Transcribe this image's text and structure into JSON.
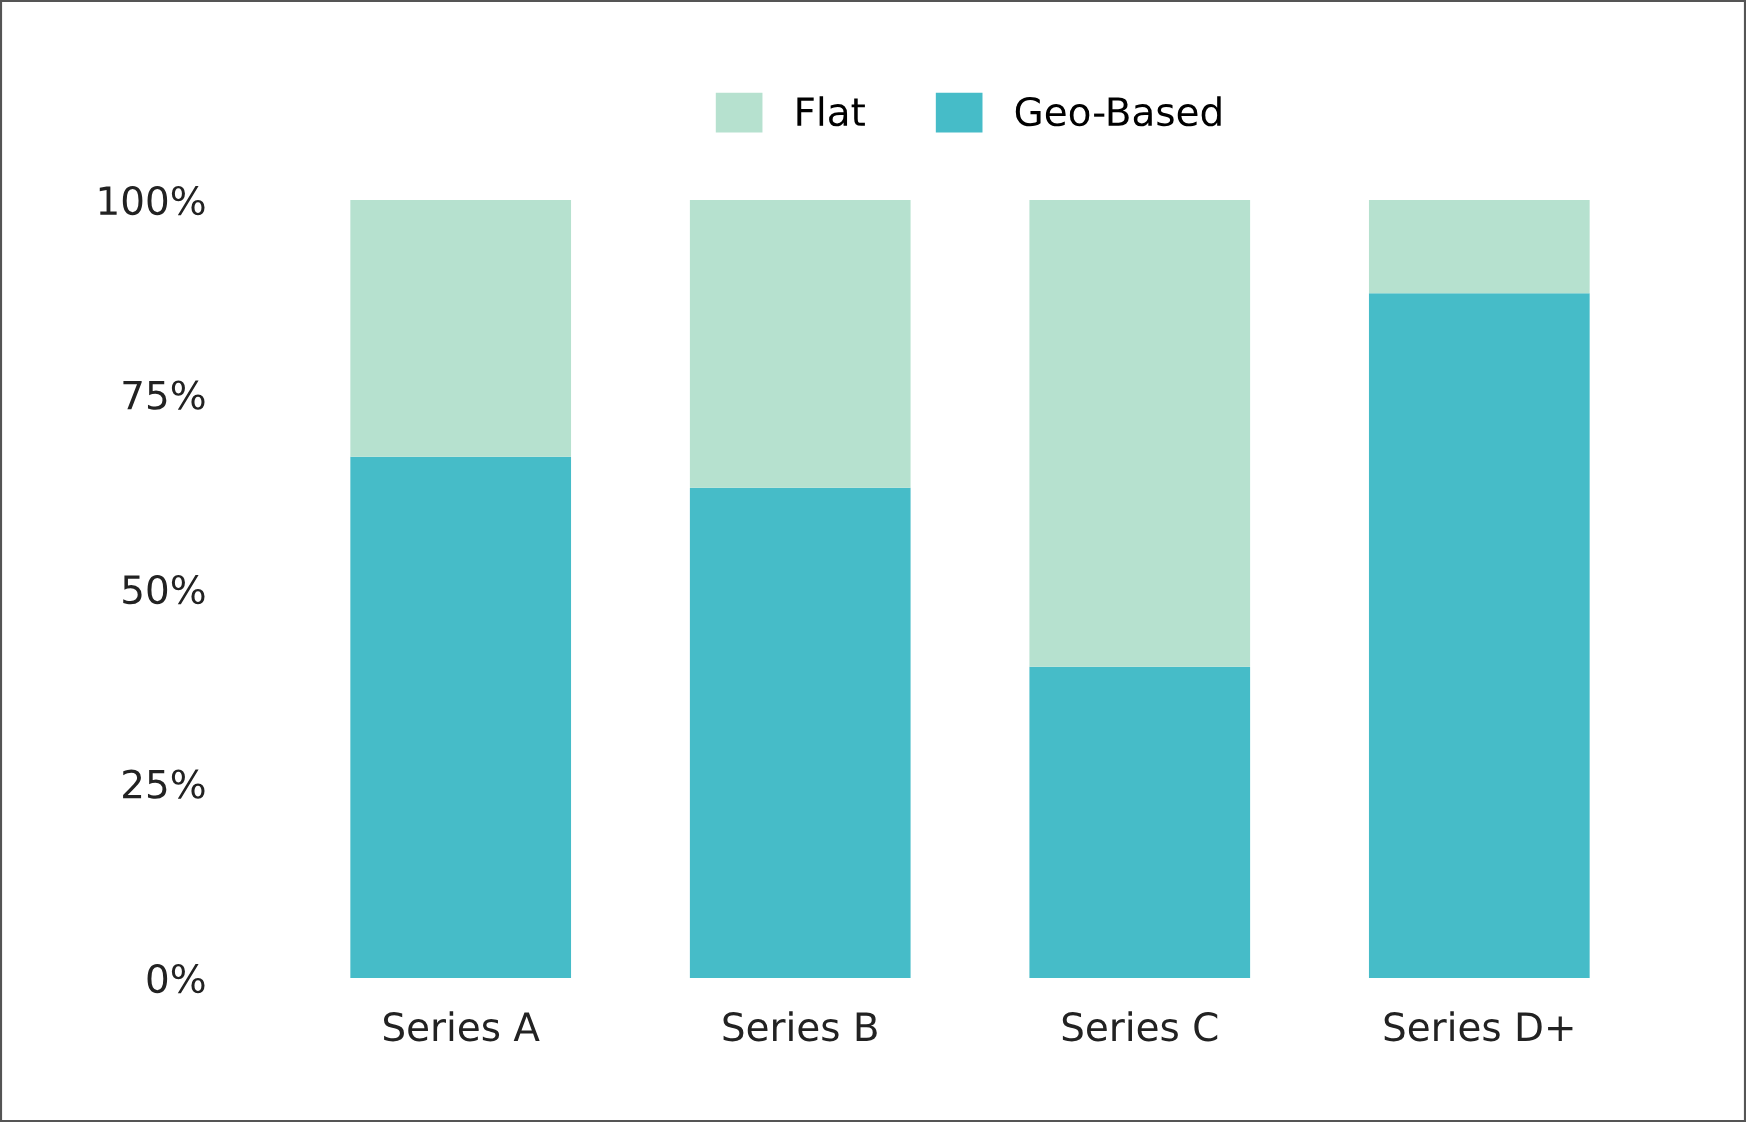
{
  "chart_data": {
    "type": "bar",
    "stacked": true,
    "categories": [
      "Series A",
      "Series B",
      "Series C",
      "Series D+"
    ],
    "series": [
      {
        "name": "Geo-Based",
        "color": "#46bcc8",
        "values": [
          67,
          63,
          40,
          88
        ]
      },
      {
        "name": "Flat",
        "color": "#b6e1cf",
        "values": [
          33,
          37,
          60,
          12
        ]
      }
    ],
    "ylim": [
      0,
      100
    ],
    "yticks": [
      {
        "value": 0,
        "label": "0%"
      },
      {
        "value": 25,
        "label": "25%"
      },
      {
        "value": 50,
        "label": "50%"
      },
      {
        "value": 75,
        "label": "75%"
      },
      {
        "value": 100,
        "label": "100%"
      }
    ],
    "grid": false,
    "legend": "top"
  }
}
